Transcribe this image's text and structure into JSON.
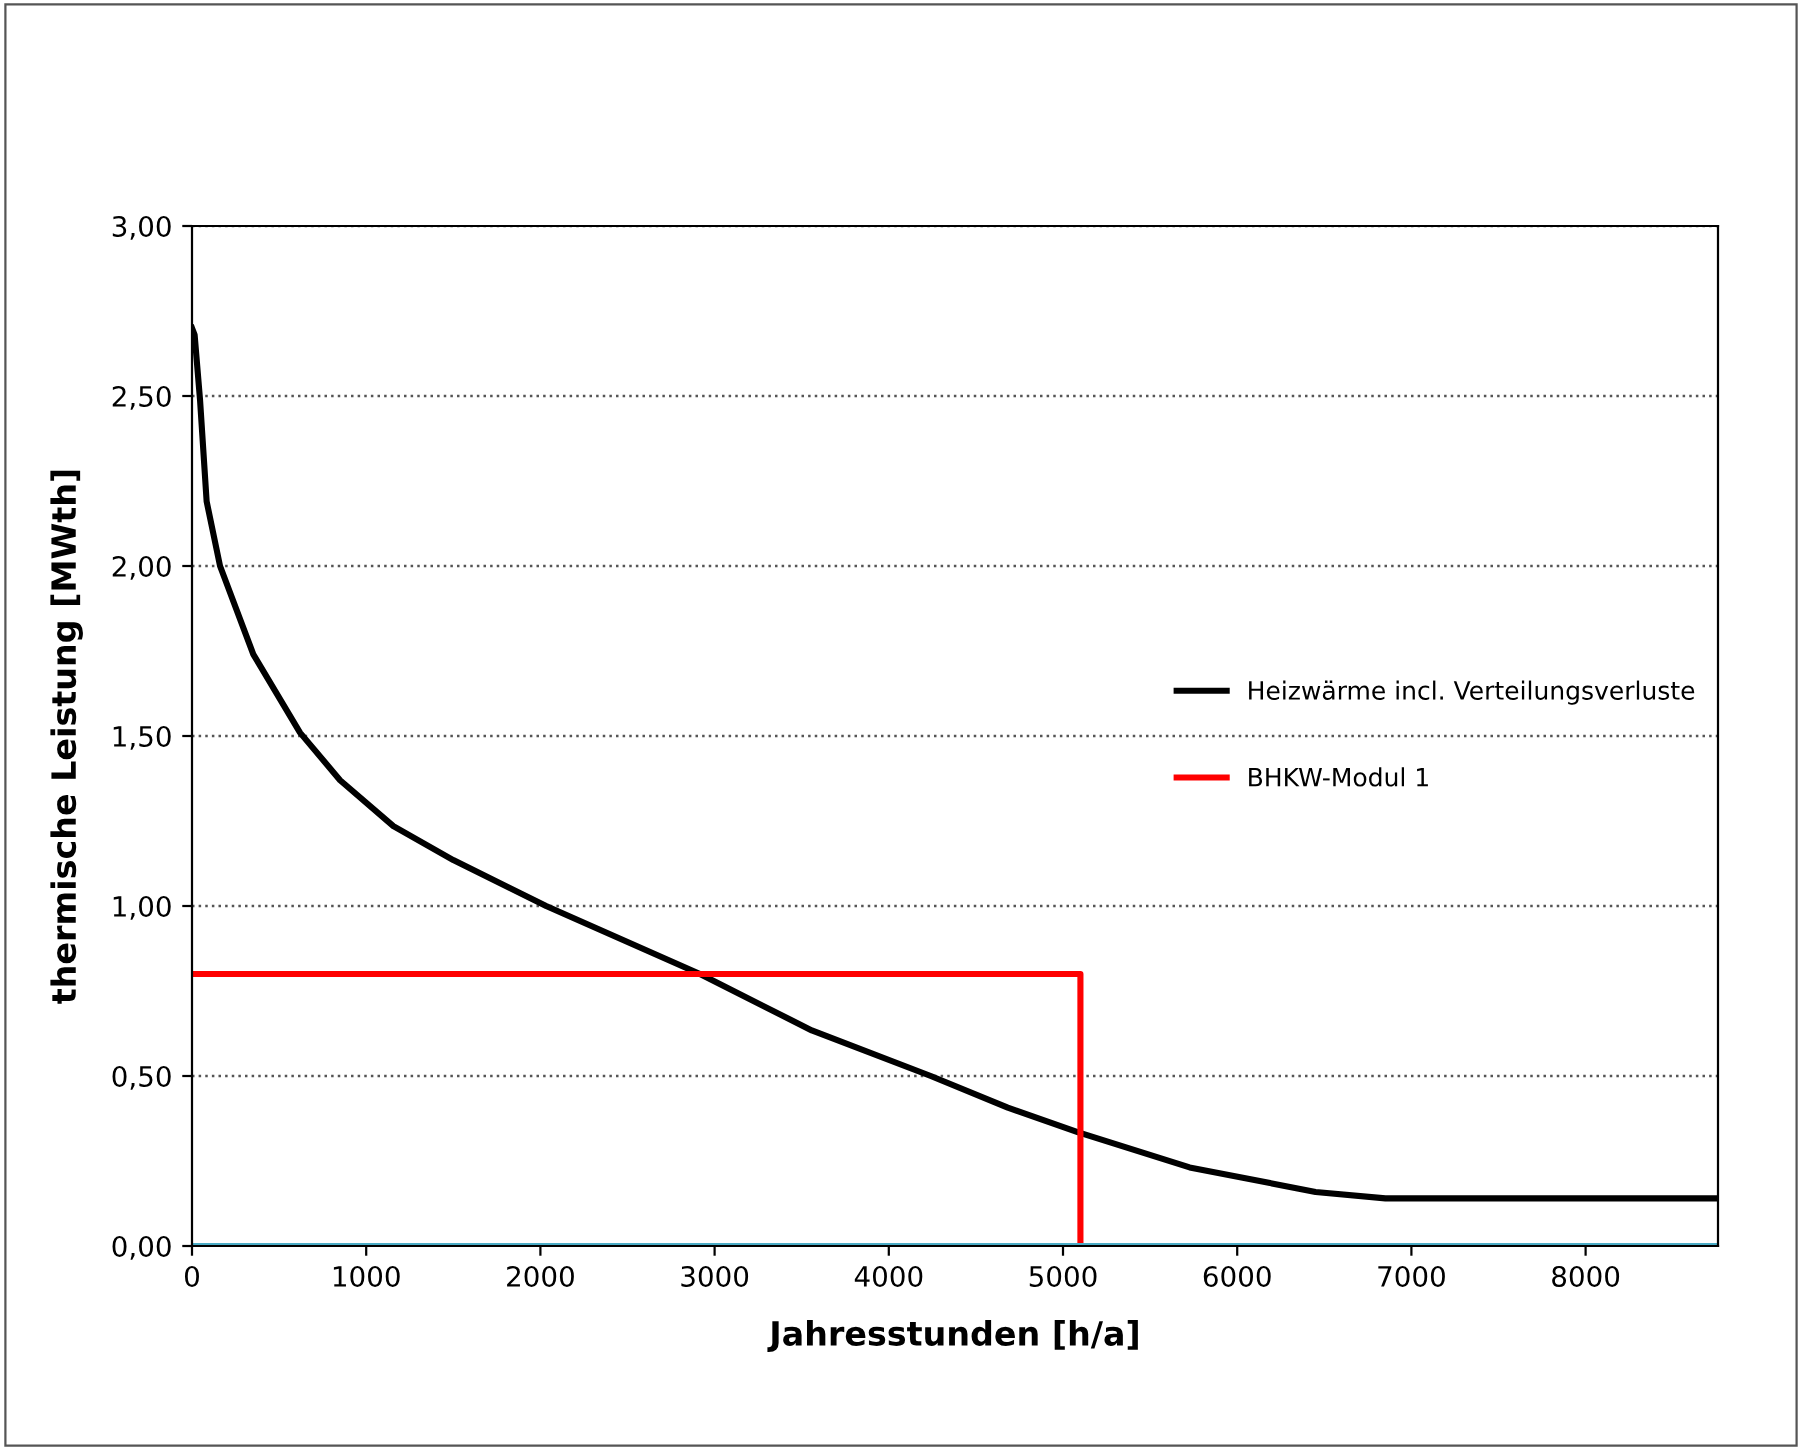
{
  "chart_data": {
    "type": "line",
    "xlabel": "Jahresstunden [h/a]",
    "ylabel": "thermische Leistung [MWth]",
    "series": [
      {
        "name": "Heizwärme incl. Verteilungsverluste",
        "color": "#000000",
        "x": [
          0,
          15,
          46,
          84,
          161,
          352,
          620,
          850,
          1156,
          1500,
          2033,
          2916,
          3558,
          4241,
          4683,
          5084,
          5727,
          6450,
          6851,
          7333,
          8760
        ],
        "values": [
          2.7,
          2.68,
          2.49,
          2.19,
          2.0,
          1.74,
          1.51,
          1.37,
          1.235,
          1.135,
          1.0,
          0.8,
          0.634,
          0.5,
          0.407,
          0.335,
          0.231,
          0.159,
          0.14,
          0.14,
          0.14
        ]
      },
      {
        "name": "BHKW-Modul 1",
        "color": "#ff0000",
        "x": [
          0,
          5100,
          5100
        ],
        "values": [
          0.8,
          0.8,
          0
        ]
      },
      {
        "color": "#4bacc6",
        "x": [
          0,
          8760
        ],
        "values": [
          0,
          0
        ]
      }
    ],
    "xlim": [
      0,
      8760
    ],
    "xticks": [
      0,
      1000,
      2000,
      3000,
      4000,
      5000,
      6000,
      7000,
      8000
    ],
    "ylim": [
      0,
      3
    ],
    "yticks": [
      {
        "value": 0,
        "label": "0,00"
      },
      {
        "value": 0.5,
        "label": "0,50"
      },
      {
        "value": 1,
        "label": "1,00"
      },
      {
        "value": 1.5,
        "label": "1,50"
      },
      {
        "value": 2,
        "label": "2,00"
      },
      {
        "value": 2.5,
        "label": "2,50"
      },
      {
        "value": 3,
        "label": "3,00"
      }
    ],
    "grid": "y",
    "legend": "center right",
    "line_style": "solid",
    "marker": "none"
  }
}
